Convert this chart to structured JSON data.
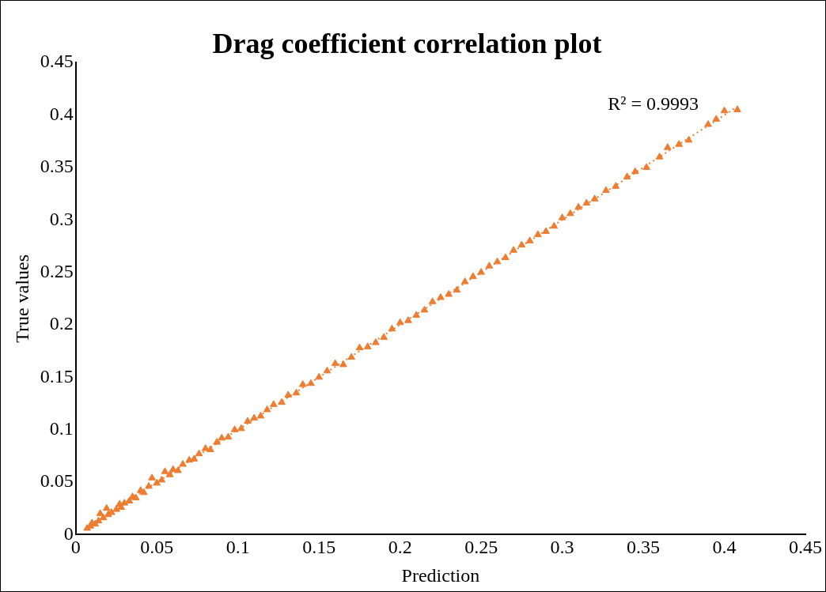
{
  "chart_data": {
    "type": "scatter",
    "title": "Drag coefficient correlation plot",
    "xlabel": "Prediction",
    "ylabel": "True values",
    "annotations": [
      "R² = 0.9993"
    ],
    "xlim": [
      0,
      0.45
    ],
    "xticks": [
      0,
      0.05,
      0.1,
      0.15,
      0.2,
      0.25,
      0.3,
      0.35,
      0.4,
      0.45
    ],
    "ylim": [
      0,
      0.45
    ],
    "yticks": [
      0,
      0.05,
      0.1,
      0.15,
      0.2,
      0.25,
      0.3,
      0.35,
      0.4,
      0.45
    ],
    "grid": false,
    "legend": false,
    "marker": "triangle",
    "series": [
      {
        "color": "#ed7d31",
        "x": [
          0.007,
          0.009,
          0.01,
          0.012,
          0.014,
          0.015,
          0.017,
          0.019,
          0.02,
          0.022,
          0.025,
          0.027,
          0.028,
          0.03,
          0.033,
          0.035,
          0.037,
          0.04,
          0.042,
          0.045,
          0.047,
          0.05,
          0.053,
          0.055,
          0.058,
          0.06,
          0.063,
          0.066,
          0.07,
          0.073,
          0.076,
          0.08,
          0.083,
          0.087,
          0.09,
          0.094,
          0.098,
          0.102,
          0.106,
          0.11,
          0.114,
          0.118,
          0.122,
          0.127,
          0.131,
          0.136,
          0.14,
          0.145,
          0.15,
          0.155,
          0.16,
          0.165,
          0.17,
          0.175,
          0.18,
          0.185,
          0.19,
          0.195,
          0.2,
          0.205,
          0.21,
          0.215,
          0.22,
          0.225,
          0.23,
          0.235,
          0.24,
          0.245,
          0.25,
          0.255,
          0.26,
          0.265,
          0.27,
          0.275,
          0.28,
          0.285,
          0.29,
          0.295,
          0.3,
          0.305,
          0.31,
          0.315,
          0.32,
          0.327,
          0.333,
          0.34,
          0.345,
          0.352,
          0.36,
          0.365,
          0.372,
          0.378,
          0.39,
          0.395,
          0.4,
          0.408
        ],
        "values": [
          0.006,
          0.008,
          0.011,
          0.01,
          0.013,
          0.02,
          0.016,
          0.025,
          0.019,
          0.021,
          0.024,
          0.029,
          0.026,
          0.03,
          0.032,
          0.036,
          0.035,
          0.042,
          0.04,
          0.046,
          0.054,
          0.049,
          0.052,
          0.06,
          0.057,
          0.062,
          0.061,
          0.067,
          0.071,
          0.072,
          0.077,
          0.082,
          0.081,
          0.088,
          0.092,
          0.093,
          0.1,
          0.101,
          0.108,
          0.111,
          0.113,
          0.119,
          0.124,
          0.126,
          0.133,
          0.135,
          0.143,
          0.144,
          0.15,
          0.156,
          0.163,
          0.162,
          0.169,
          0.178,
          0.179,
          0.183,
          0.188,
          0.196,
          0.202,
          0.204,
          0.209,
          0.214,
          0.222,
          0.226,
          0.229,
          0.233,
          0.241,
          0.246,
          0.25,
          0.256,
          0.26,
          0.264,
          0.271,
          0.276,
          0.28,
          0.286,
          0.289,
          0.294,
          0.302,
          0.306,
          0.312,
          0.316,
          0.32,
          0.328,
          0.332,
          0.341,
          0.346,
          0.35,
          0.36,
          0.369,
          0.372,
          0.376,
          0.391,
          0.396,
          0.404,
          0.405
        ]
      },
      {
        "type": "line",
        "color": "#ed7d31",
        "line_style": "dotted",
        "marker": "none",
        "x": [
          0.007,
          0.41
        ],
        "values": [
          0.007,
          0.41
        ]
      }
    ]
  }
}
